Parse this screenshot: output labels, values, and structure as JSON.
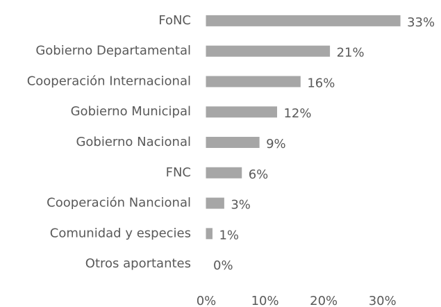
{
  "chart_data": {
    "type": "bar",
    "orientation": "horizontal",
    "categories": [
      "FoNC",
      "Gobierno Departamental",
      "Cooperación Internacional",
      "Gobierno Municipal",
      "Gobierno Nacional",
      "FNC",
      "Cooperación Nancional",
      "Comunidad y especies",
      "Otros aportantes"
    ],
    "values": [
      33,
      21,
      16,
      12,
      9,
      6,
      3,
      1,
      0
    ],
    "value_labels": [
      "33%",
      "21%",
      "16%",
      "12%",
      "9%",
      "6%",
      "3%",
      "1%",
      "0%"
    ],
    "color": "#a6a6a6",
    "xlim": [
      0,
      35
    ],
    "xticks": [
      {
        "value": 0,
        "label": "0%"
      },
      {
        "value": 10,
        "label": "10%"
      },
      {
        "value": 20,
        "label": "20%"
      },
      {
        "value": 30,
        "label": "30%"
      }
    ],
    "grid": false
  }
}
